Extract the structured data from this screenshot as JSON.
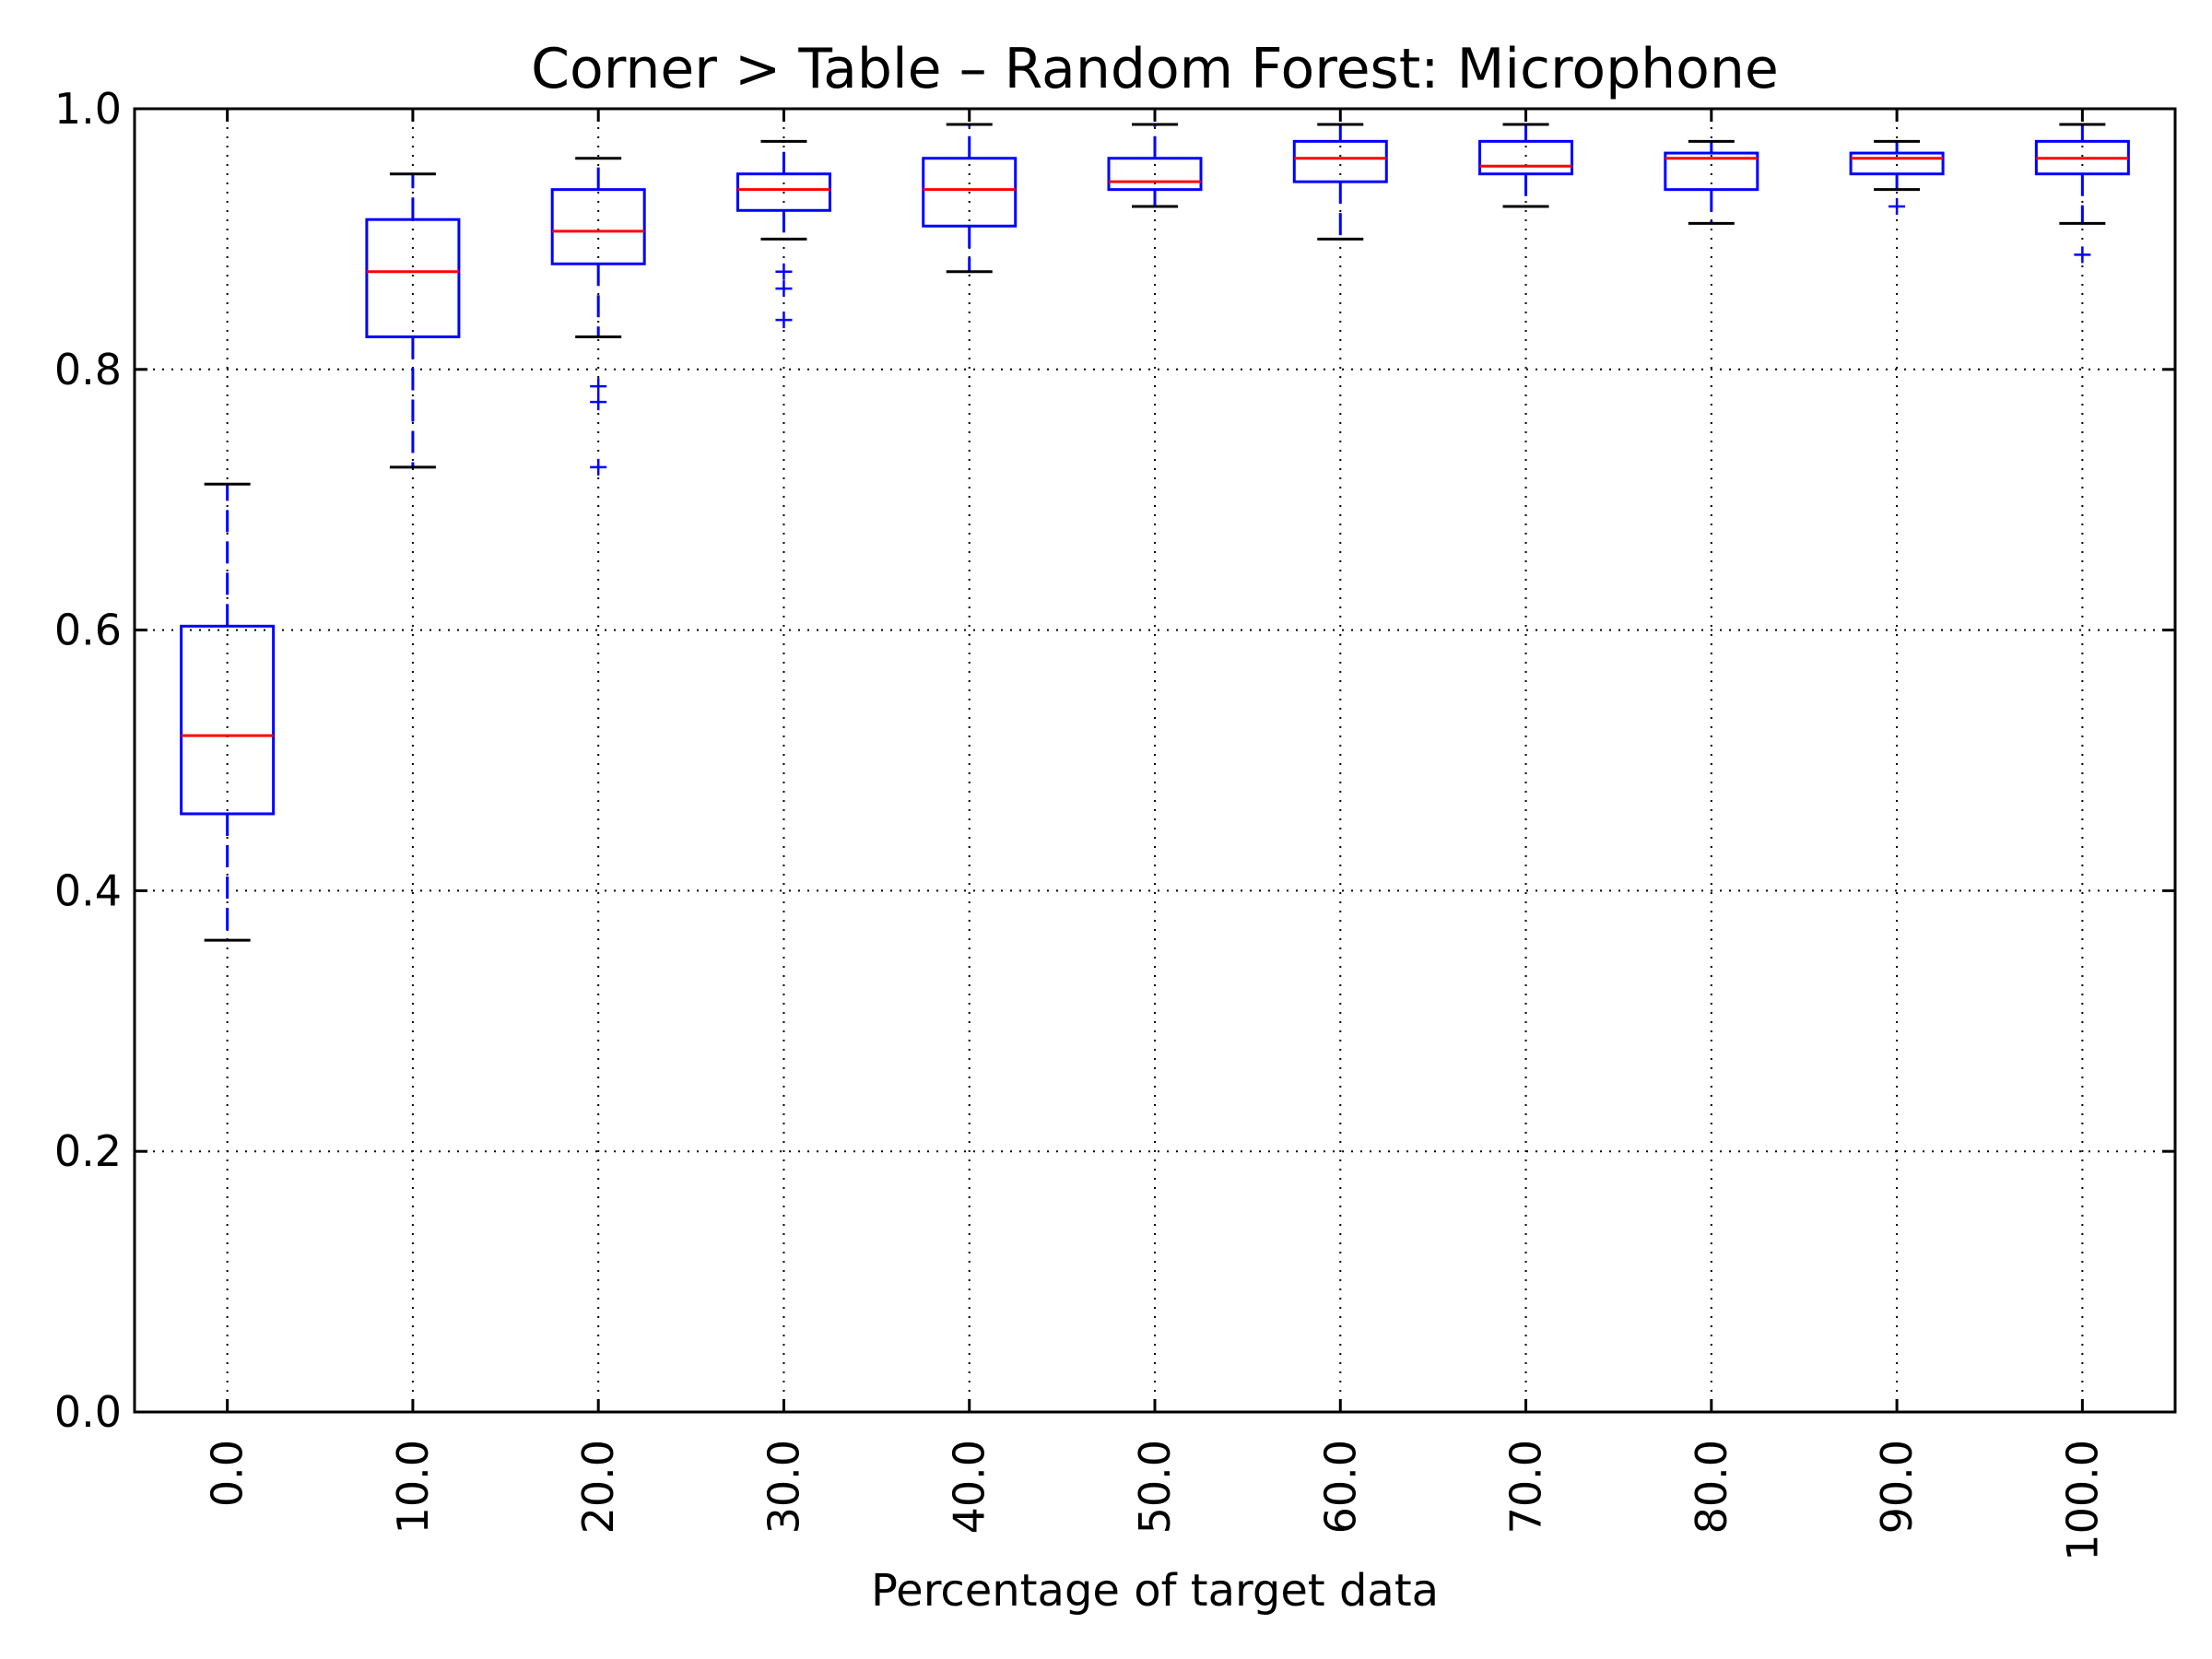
{
  "chart_data": {
    "type": "box",
    "title": "Corner > Table – Random Forest: Microphone",
    "xlabel": "Percentage of target data",
    "ylabel": "",
    "ylim": [
      0.0,
      1.0
    ],
    "yticks": [
      "0.0",
      "0.2",
      "0.4",
      "0.6",
      "0.8",
      "1.0"
    ],
    "grid": true,
    "categories": [
      "0.0",
      "10.0",
      "20.0",
      "30.0",
      "40.0",
      "50.0",
      "60.0",
      "70.0",
      "80.0",
      "90.0",
      "100.0"
    ],
    "boxes": [
      {
        "category": "0.0",
        "whisker_low": 0.362,
        "q1": 0.459,
        "median": 0.519,
        "q3": 0.603,
        "whisker_high": 0.712,
        "outliers": []
      },
      {
        "category": "10.0",
        "whisker_low": 0.725,
        "q1": 0.825,
        "median": 0.875,
        "q3": 0.915,
        "whisker_high": 0.95,
        "outliers": []
      },
      {
        "category": "20.0",
        "whisker_low": 0.825,
        "q1": 0.881,
        "median": 0.906,
        "q3": 0.938,
        "whisker_high": 0.962,
        "outliers": [
          0.787,
          0.775,
          0.725
        ]
      },
      {
        "category": "30.0",
        "whisker_low": 0.9,
        "q1": 0.922,
        "median": 0.938,
        "q3": 0.95,
        "whisker_high": 0.975,
        "outliers": [
          0.875,
          0.862,
          0.838
        ]
      },
      {
        "category": "40.0",
        "whisker_low": 0.875,
        "q1": 0.91,
        "median": 0.938,
        "q3": 0.962,
        "whisker_high": 0.988,
        "outliers": []
      },
      {
        "category": "50.0",
        "whisker_low": 0.925,
        "q1": 0.938,
        "median": 0.944,
        "q3": 0.962,
        "whisker_high": 0.988,
        "outliers": []
      },
      {
        "category": "60.0",
        "whisker_low": 0.9,
        "q1": 0.944,
        "median": 0.962,
        "q3": 0.975,
        "whisker_high": 0.988,
        "outliers": []
      },
      {
        "category": "70.0",
        "whisker_low": 0.925,
        "q1": 0.95,
        "median": 0.956,
        "q3": 0.975,
        "whisker_high": 0.988,
        "outliers": []
      },
      {
        "category": "80.0",
        "whisker_low": 0.912,
        "q1": 0.938,
        "median": 0.962,
        "q3": 0.966,
        "whisker_high": 0.975,
        "outliers": []
      },
      {
        "category": "90.0",
        "whisker_low": 0.938,
        "q1": 0.95,
        "median": 0.962,
        "q3": 0.966,
        "whisker_high": 0.975,
        "outliers": [
          0.925
        ]
      },
      {
        "category": "100.0",
        "whisker_low": 0.912,
        "q1": 0.95,
        "median": 0.962,
        "q3": 0.975,
        "whisker_high": 0.988,
        "outliers": [
          0.888
        ]
      }
    ],
    "colors": {
      "box": "#0000ff",
      "median": "#ff0000",
      "whisker_cap": "#000000",
      "outlier": "#0000ff"
    }
  }
}
